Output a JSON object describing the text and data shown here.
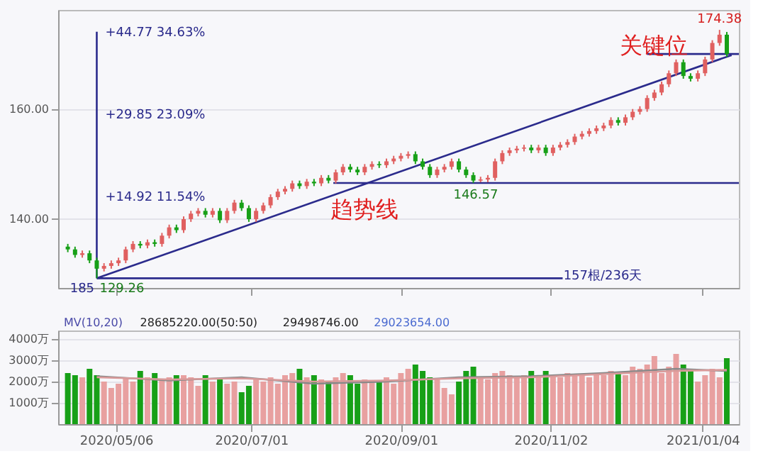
{
  "chart_data": [
    {
      "type": "candlestick",
      "x": [
        "2020-04-16",
        "2020-04-19",
        "2020-04-22",
        "2020-04-25",
        "2020-04-28",
        "2020-05-01",
        "2020-05-04",
        "2020-05-07",
        "2020-05-10",
        "2020-05-13",
        "2020-05-16",
        "2020-05-19",
        "2020-05-22",
        "2020-05-25",
        "2020-05-28",
        "2020-05-31",
        "2020-06-03",
        "2020-06-06",
        "2020-06-09",
        "2020-06-12",
        "2020-06-15",
        "2020-06-18",
        "2020-06-21",
        "2020-06-24",
        "2020-06-27",
        "2020-06-30",
        "2020-07-03",
        "2020-07-06",
        "2020-07-09",
        "2020-07-12",
        "2020-07-15",
        "2020-07-18",
        "2020-07-21",
        "2020-07-24",
        "2020-07-27",
        "2020-07-30",
        "2020-08-02",
        "2020-08-05",
        "2020-08-08",
        "2020-08-11",
        "2020-08-14",
        "2020-08-17",
        "2020-08-20",
        "2020-08-23",
        "2020-08-26",
        "2020-08-29",
        "2020-09-01",
        "2020-09-04",
        "2020-09-07",
        "2020-09-10",
        "2020-09-13",
        "2020-09-16",
        "2020-09-19",
        "2020-09-22",
        "2020-09-25",
        "2020-09-28",
        "2020-10-01",
        "2020-10-04",
        "2020-10-07",
        "2020-10-10",
        "2020-10-13",
        "2020-10-16",
        "2020-10-19",
        "2020-10-22",
        "2020-10-25",
        "2020-10-28",
        "2020-10-31",
        "2020-11-03",
        "2020-11-06",
        "2020-11-09",
        "2020-11-12",
        "2020-11-15",
        "2020-11-18",
        "2020-11-21",
        "2020-11-24",
        "2020-11-27",
        "2020-11-30",
        "2020-12-03",
        "2020-12-06",
        "2020-12-09",
        "2020-12-12",
        "2020-12-15",
        "2020-12-18",
        "2020-12-21",
        "2020-12-24",
        "2020-12-27",
        "2020-12-30",
        "2021-01-02",
        "2021-01-05",
        "2021-01-08",
        "2021-01-11",
        "2021-01-14"
      ],
      "ohlc": [
        [
          135.0,
          135.5,
          134.0,
          134.5
        ],
        [
          134.5,
          135.0,
          133.0,
          133.5
        ],
        [
          133.5,
          134.3,
          133.0,
          133.8
        ],
        [
          133.8,
          134.3,
          132.0,
          132.5
        ],
        [
          132.5,
          133.0,
          129.26,
          131.0
        ],
        [
          131.0,
          132.0,
          130.5,
          131.5
        ],
        [
          131.5,
          132.5,
          131.0,
          132.0
        ],
        [
          132.0,
          133.0,
          131.5,
          132.5
        ],
        [
          132.5,
          135.0,
          132.0,
          134.5
        ],
        [
          134.5,
          136.0,
          134.0,
          135.5
        ],
        [
          135.5,
          136.0,
          134.7,
          135.2
        ],
        [
          135.2,
          136.3,
          134.7,
          135.8
        ],
        [
          135.8,
          136.3,
          135.0,
          135.5
        ],
        [
          135.5,
          137.5,
          135.0,
          137.0
        ],
        [
          137.0,
          139.0,
          136.5,
          138.5
        ],
        [
          138.5,
          139.0,
          137.5,
          138.0
        ],
        [
          138.0,
          140.5,
          137.5,
          140.0
        ],
        [
          140.0,
          141.5,
          139.5,
          141.0
        ],
        [
          141.0,
          142.0,
          140.5,
          141.5
        ],
        [
          141.5,
          142.0,
          140.3,
          140.8
        ],
        [
          140.8,
          142.0,
          140.3,
          141.5
        ],
        [
          141.5,
          142.0,
          139.3,
          139.8
        ],
        [
          139.8,
          142.0,
          139.3,
          141.5
        ],
        [
          141.5,
          143.5,
          141.0,
          143.0
        ],
        [
          143.0,
          143.5,
          141.5,
          142.0
        ],
        [
          142.0,
          142.5,
          139.5,
          140.0
        ],
        [
          140.0,
          142.0,
          139.5,
          141.5
        ],
        [
          141.5,
          143.0,
          141.0,
          142.5
        ],
        [
          142.5,
          144.5,
          142.0,
          144.0
        ],
        [
          144.0,
          145.5,
          143.5,
          145.0
        ],
        [
          145.0,
          146.0,
          144.5,
          145.5
        ],
        [
          145.5,
          147.0,
          145.0,
          146.5
        ],
        [
          146.5,
          147.0,
          145.5,
          146.0
        ],
        [
          146.0,
          147.3,
          145.5,
          146.8
        ],
        [
          146.8,
          147.3,
          146.0,
          146.5
        ],
        [
          146.5,
          148.0,
          146.0,
          147.5
        ],
        [
          147.5,
          148.0,
          146.5,
          147.0
        ],
        [
          147.0,
          149.0,
          146.5,
          148.5
        ],
        [
          148.5,
          150.0,
          148.0,
          149.5
        ],
        [
          149.5,
          150.0,
          148.5,
          149.0
        ],
        [
          149.0,
          149.5,
          148.0,
          148.5
        ],
        [
          148.5,
          150.0,
          148.0,
          149.5
        ],
        [
          149.5,
          150.5,
          149.0,
          150.0
        ],
        [
          150.0,
          150.5,
          149.3,
          149.8
        ],
        [
          149.8,
          151.0,
          149.3,
          150.5
        ],
        [
          150.5,
          151.5,
          150.0,
          151.0
        ],
        [
          151.0,
          152.0,
          150.5,
          151.5
        ],
        [
          151.5,
          152.3,
          151.0,
          151.8
        ],
        [
          151.8,
          152.3,
          150.0,
          150.5
        ],
        [
          150.5,
          151.0,
          149.0,
          149.5
        ],
        [
          149.5,
          150.0,
          147.5,
          148.0
        ],
        [
          148.0,
          149.5,
          147.5,
          149.0
        ],
        [
          149.0,
          150.0,
          148.5,
          149.5
        ],
        [
          149.5,
          151.0,
          149.0,
          150.5
        ],
        [
          150.5,
          151.0,
          148.5,
          149.0
        ],
        [
          149.0,
          149.5,
          147.5,
          148.0
        ],
        [
          148.0,
          148.5,
          146.57,
          147.0
        ],
        [
          147.0,
          147.7,
          146.7,
          147.2
        ],
        [
          147.2,
          148.0,
          146.7,
          147.5
        ],
        [
          147.5,
          151.0,
          147.0,
          150.5
        ],
        [
          150.5,
          152.5,
          150.0,
          152.0
        ],
        [
          152.0,
          153.0,
          151.5,
          152.5
        ],
        [
          152.5,
          153.3,
          152.0,
          152.8
        ],
        [
          152.8,
          153.5,
          152.3,
          153.0
        ],
        [
          153.0,
          153.5,
          152.0,
          152.5
        ],
        [
          152.5,
          153.5,
          152.0,
          153.0
        ],
        [
          153.0,
          153.5,
          151.5,
          152.0
        ],
        [
          152.0,
          153.5,
          151.5,
          153.0
        ],
        [
          153.0,
          154.0,
          152.5,
          153.5
        ],
        [
          153.5,
          154.5,
          153.0,
          154.0
        ],
        [
          154.0,
          155.5,
          153.5,
          155.0
        ],
        [
          155.0,
          156.0,
          154.5,
          155.5
        ],
        [
          155.5,
          156.5,
          155.0,
          156.0
        ],
        [
          156.0,
          157.0,
          155.5,
          156.5
        ],
        [
          156.5,
          157.5,
          156.0,
          157.0
        ],
        [
          157.0,
          158.5,
          156.5,
          158.0
        ],
        [
          158.0,
          158.5,
          157.0,
          157.5
        ],
        [
          157.5,
          159.0,
          157.0,
          158.5
        ],
        [
          158.5,
          160.0,
          158.0,
          159.5
        ],
        [
          159.5,
          160.5,
          159.0,
          160.0
        ],
        [
          160.0,
          162.5,
          159.5,
          162.0
        ],
        [
          162.0,
          163.5,
          161.5,
          163.0
        ],
        [
          163.0,
          165.0,
          162.5,
          164.5
        ],
        [
          164.5,
          167.0,
          164.0,
          166.5
        ],
        [
          166.5,
          169.0,
          166.0,
          168.5
        ],
        [
          168.5,
          169.0,
          165.5,
          166.0
        ],
        [
          166.0,
          166.5,
          165.0,
          165.5
        ],
        [
          165.5,
          167.0,
          165.0,
          166.5
        ],
        [
          166.5,
          169.5,
          166.0,
          169.0
        ],
        [
          169.0,
          172.5,
          168.5,
          172.0
        ],
        [
          172.0,
          174.38,
          171.5,
          173.5
        ],
        [
          173.5,
          174.0,
          169.5,
          170.0
        ]
      ],
      "colors": [
        "#17a017",
        "#17a017",
        "#e06060",
        "#17a017",
        "#17a017",
        "#e06060",
        "#e06060",
        "#e06060",
        "#e06060",
        "#e06060",
        "#17a017",
        "#e06060",
        "#17a017",
        "#e06060",
        "#e06060",
        "#17a017",
        "#e06060",
        "#e06060",
        "#e06060",
        "#17a017",
        "#e06060",
        "#17a017",
        "#e06060",
        "#e06060",
        "#17a017",
        "#17a017",
        "#e06060",
        "#e06060",
        "#e06060",
        "#e06060",
        "#e06060",
        "#e06060",
        "#17a017",
        "#e06060",
        "#17a017",
        "#e06060",
        "#17a017",
        "#e06060",
        "#e06060",
        "#17a017",
        "#17a017",
        "#e06060",
        "#e06060",
        "#17a017",
        "#e06060",
        "#e06060",
        "#e06060",
        "#e06060",
        "#17a017",
        "#17a017",
        "#17a017",
        "#e06060",
        "#e06060",
        "#e06060",
        "#17a017",
        "#17a017",
        "#17a017",
        "#e06060",
        "#e06060",
        "#e06060",
        "#e06060",
        "#e06060",
        "#e06060",
        "#e06060",
        "#17a017",
        "#e06060",
        "#17a017",
        "#e06060",
        "#e06060",
        "#e06060",
        "#e06060",
        "#e06060",
        "#e06060",
        "#e06060",
        "#e06060",
        "#e06060",
        "#17a017",
        "#e06060",
        "#e06060",
        "#e06060",
        "#e06060",
        "#e06060",
        "#e06060",
        "#e06060",
        "#e06060",
        "#17a017",
        "#17a017",
        "#e06060",
        "#e06060",
        "#e06060",
        "#e06060",
        "#17a017"
      ],
      "series": [
        {
          "type": "line",
          "color": "#2b2b8c",
          "x": [
            "2020-04-28",
            "2021-01-16"
          ],
          "values": [
            129.26,
            169.8
          ]
        },
        {
          "type": "line",
          "color": "#2b2b8c",
          "x": [
            "2020-04-28",
            "2020-04-28"
          ],
          "values": [
            129.26,
            174.03
          ]
        },
        {
          "type": "line",
          "color": "#2b2b8c",
          "x": [
            "2020-04-28",
            "2020-11-07"
          ],
          "values": [
            129.26,
            129.26
          ]
        },
        {
          "type": "line",
          "color": "#2b2b8c",
          "x": [
            "2020-08-04",
            "2021-01-19"
          ],
          "values": [
            146.57,
            146.57
          ]
        },
        {
          "type": "line",
          "color": "#2b2b8c",
          "x": [
            "2020-12-12",
            "2021-01-19"
          ],
          "values": [
            170.0,
            170.0
          ]
        }
      ],
      "xlim": [
        "2020-04-12",
        "2021-01-19"
      ],
      "xticks": [
        {
          "value": "2020-05-06",
          "label": null
        },
        {
          "value": "2020-07-01",
          "label": null
        },
        {
          "value": "2020-09-01",
          "label": null
        },
        {
          "value": "2020-11-02",
          "label": null
        },
        {
          "value": "2021-01-04",
          "label": null
        }
      ],
      "ylim": [
        127.5,
        178
      ],
      "yticks": [
        {
          "value": 140,
          "label": "140.00"
        },
        {
          "value": 160,
          "label": "160.00"
        }
      ],
      "grid": "y",
      "tick_labels": "y",
      "annotations": [
        {
          "text": "+44.77  34.63%",
          "x": "2020-04-28",
          "y": 174.03
        },
        {
          "text": "+29.85  23.09%",
          "x": "2020-04-28",
          "y": 159.11
        },
        {
          "text": "+14.92  11.54%",
          "x": "2020-04-28",
          "y": 144.18
        },
        {
          "text": "129.26",
          "x": "2020-04-28",
          "y": 129.26
        },
        {
          "text": "185",
          "x": "2020-04-27",
          "y": 129.26
        },
        {
          "text": "146.57",
          "x": "2020-10-02",
          "y": 146.57
        },
        {
          "text": "174.38",
          "x": "2021-01-11",
          "y": 174.38
        },
        "趋势线",
        "关键位",
        "157根/236天"
      ]
    },
    {
      "type": "bar",
      "x": [
        "2020-04-16",
        "2020-04-19",
        "2020-04-22",
        "2020-04-25",
        "2020-04-28",
        "2020-05-01",
        "2020-05-04",
        "2020-05-07",
        "2020-05-10",
        "2020-05-13",
        "2020-05-16",
        "2020-05-19",
        "2020-05-22",
        "2020-05-25",
        "2020-05-28",
        "2020-05-31",
        "2020-06-03",
        "2020-06-06",
        "2020-06-09",
        "2020-06-12",
        "2020-06-15",
        "2020-06-18",
        "2020-06-21",
        "2020-06-24",
        "2020-06-27",
        "2020-06-30",
        "2020-07-03",
        "2020-07-06",
        "2020-07-09",
        "2020-07-12",
        "2020-07-15",
        "2020-07-18",
        "2020-07-21",
        "2020-07-24",
        "2020-07-27",
        "2020-07-30",
        "2020-08-02",
        "2020-08-05",
        "2020-08-08",
        "2020-08-11",
        "2020-08-14",
        "2020-08-17",
        "2020-08-20",
        "2020-08-23",
        "2020-08-26",
        "2020-08-29",
        "2020-09-01",
        "2020-09-04",
        "2020-09-07",
        "2020-09-10",
        "2020-09-13",
        "2020-09-16",
        "2020-09-19",
        "2020-09-22",
        "2020-09-25",
        "2020-09-28",
        "2020-10-01",
        "2020-10-04",
        "2020-10-07",
        "2020-10-10",
        "2020-10-13",
        "2020-10-16",
        "2020-10-19",
        "2020-10-22",
        "2020-10-25",
        "2020-10-28",
        "2020-10-31",
        "2020-11-03",
        "2020-11-06",
        "2020-11-09",
        "2020-11-12",
        "2020-11-15",
        "2020-11-18",
        "2020-11-21",
        "2020-11-24",
        "2020-11-27",
        "2020-11-30",
        "2020-12-03",
        "2020-12-06",
        "2020-12-09",
        "2020-12-12",
        "2020-12-15",
        "2020-12-18",
        "2020-12-21",
        "2020-12-24",
        "2020-12-27",
        "2020-12-30",
        "2021-01-02",
        "2021-01-05",
        "2021-01-08",
        "2021-01-11",
        "2021-01-14"
      ],
      "series": [
        {
          "type": "bar",
          "values": [
            2400,
            2300,
            2200,
            2600,
            2300,
            2000,
            1700,
            1900,
            2200,
            2000,
            2500,
            2200,
            2400,
            2100,
            2200,
            2300,
            2300,
            2200,
            1800,
            2300,
            2000,
            2100,
            1900,
            2000,
            1500,
            1800,
            2100,
            2000,
            2200,
            1900,
            2300,
            2400,
            2600,
            2200,
            2300,
            2100,
            2000,
            2200,
            2400,
            2300,
            1900,
            2100,
            2000,
            2000,
            2200,
            1900,
            2400,
            2600,
            2800,
            2500,
            2200,
            2100,
            1700,
            1400,
            2000,
            2500,
            2700,
            2200,
            2100,
            2400,
            2500,
            2300,
            2200,
            2300,
            2500,
            2200,
            2500,
            2300,
            2200,
            2400,
            2300,
            2300,
            2200,
            2400,
            2300,
            2500,
            2400,
            2300,
            2700,
            2600,
            2800,
            3200,
            2400,
            2700,
            3300,
            2800,
            2600,
            2000,
            2300,
            2600,
            2200,
            3100
          ],
          "colors": [
            "#17a017",
            "#17a017",
            "#e8a0a0",
            "#17a017",
            "#17a017",
            "#e8a0a0",
            "#e8a0a0",
            "#e8a0a0",
            "#e8a0a0",
            "#e8a0a0",
            "#17a017",
            "#e8a0a0",
            "#17a017",
            "#e8a0a0",
            "#e8a0a0",
            "#17a017",
            "#e8a0a0",
            "#e8a0a0",
            "#e8a0a0",
            "#17a017",
            "#e8a0a0",
            "#17a017",
            "#e8a0a0",
            "#e8a0a0",
            "#17a017",
            "#17a017",
            "#e8a0a0",
            "#e8a0a0",
            "#e8a0a0",
            "#e8a0a0",
            "#e8a0a0",
            "#e8a0a0",
            "#17a017",
            "#e8a0a0",
            "#17a017",
            "#e8a0a0",
            "#17a017",
            "#e8a0a0",
            "#e8a0a0",
            "#17a017",
            "#17a017",
            "#e8a0a0",
            "#e8a0a0",
            "#17a017",
            "#e8a0a0",
            "#e8a0a0",
            "#e8a0a0",
            "#e8a0a0",
            "#17a017",
            "#17a017",
            "#17a017",
            "#e8a0a0",
            "#e8a0a0",
            "#e8a0a0",
            "#17a017",
            "#17a017",
            "#17a017",
            "#e8a0a0",
            "#e8a0a0",
            "#e8a0a0",
            "#e8a0a0",
            "#e8a0a0",
            "#e8a0a0",
            "#e8a0a0",
            "#17a017",
            "#e8a0a0",
            "#17a017",
            "#e8a0a0",
            "#e8a0a0",
            "#e8a0a0",
            "#e8a0a0",
            "#e8a0a0",
            "#e8a0a0",
            "#e8a0a0",
            "#e8a0a0",
            "#e8a0a0",
            "#17a017",
            "#e8a0a0",
            "#e8a0a0",
            "#e8a0a0",
            "#e8a0a0",
            "#e8a0a0",
            "#e8a0a0",
            "#e8a0a0",
            "#e8a0a0",
            "#17a017",
            "#17a017",
            "#e8a0a0",
            "#e8a0a0",
            "#e8a0a0",
            "#e8a0a0",
            "#17a017"
          ]
        },
        {
          "type": "line",
          "color": "#888888",
          "x": [
            "2020-04-28",
            "2020-05-28",
            "2020-06-27",
            "2020-07-27",
            "2020-08-26",
            "2020-09-25",
            "2020-10-25",
            "2020-11-24",
            "2020-12-24",
            "2021-01-14"
          ],
          "values": [
            2250,
            2050,
            2200,
            1900,
            2000,
            2200,
            2250,
            2400,
            2600,
            2500
          ]
        },
        {
          "type": "line",
          "color": "#d99a9a",
          "x": [
            "2020-04-28",
            "2020-05-28",
            "2020-06-27",
            "2020-07-27",
            "2020-08-26",
            "2020-09-25",
            "2020-10-25",
            "2020-11-24",
            "2020-12-24",
            "2021-01-14"
          ],
          "values": [
            2200,
            2100,
            2150,
            2000,
            2050,
            2150,
            2200,
            2350,
            2500,
            2550
          ]
        }
      ],
      "xlim": [
        "2020-04-12",
        "2021-01-19"
      ],
      "xticks": [
        {
          "value": "2020-05-06",
          "label": "2020/05/06"
        },
        {
          "value": "2020-07-01",
          "label": "2020/07/01"
        },
        {
          "value": "2020-09-01",
          "label": "2020/09/01"
        },
        {
          "value": "2020-11-02",
          "label": "2020/11/02"
        },
        {
          "value": "2021-01-04",
          "label": "2021/01/04"
        }
      ],
      "ylim": [
        0,
        4400
      ],
      "yticks": [
        {
          "value": 1000,
          "label": "1000万"
        },
        {
          "value": 2000,
          "label": "2000万"
        },
        {
          "value": 3000,
          "label": "3000万"
        },
        {
          "value": 4000,
          "label": "4000万"
        }
      ],
      "grid": "y",
      "annotations": [
        "MV(10,20)",
        "28685220.00(50:50)",
        "29498746.00",
        "29023654.00"
      ]
    }
  ]
}
